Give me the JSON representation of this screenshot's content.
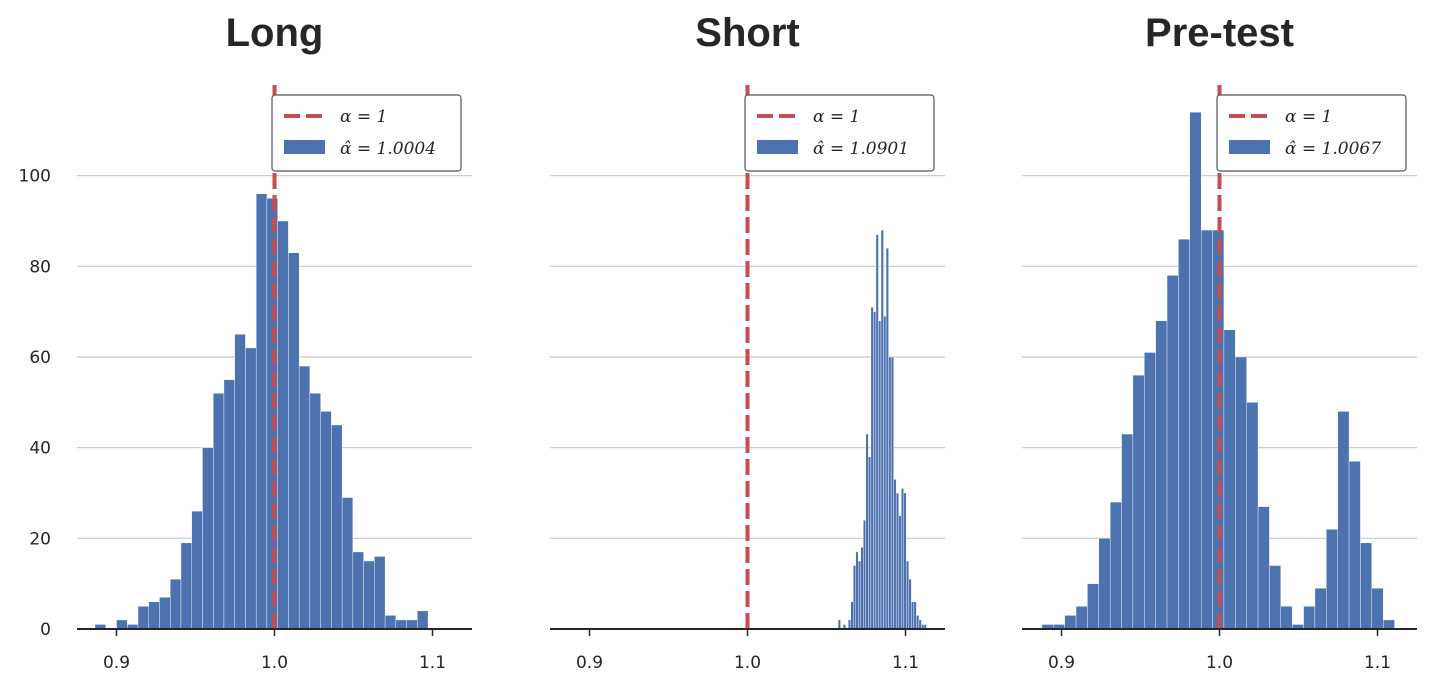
{
  "chart_data": [
    {
      "type": "histogram",
      "title": "Long",
      "xlim": [
        0.875,
        1.125
      ],
      "ylim": [
        0,
        120
      ],
      "xticks": [
        "0.9",
        "1.0",
        "1.1"
      ],
      "yticks": [
        "0",
        "20",
        "40",
        "60",
        "80",
        "100"
      ],
      "grid": "horizontal",
      "legend_position": "top-right",
      "reference_line": {
        "x": 1.0,
        "label": "α = 1",
        "color": "#c44e52",
        "style": "dashed"
      },
      "series_label": "α̂ = 1.0004",
      "bar_color": "#4c72b0",
      "bin_width": 0.0068,
      "bins": [
        {
          "x": 0.8898,
          "y": 1
        },
        {
          "x": 0.8966,
          "y": 0
        },
        {
          "x": 0.9034,
          "y": 2
        },
        {
          "x": 0.9102,
          "y": 1
        },
        {
          "x": 0.917,
          "y": 5
        },
        {
          "x": 0.9238,
          "y": 6
        },
        {
          "x": 0.9306,
          "y": 7
        },
        {
          "x": 0.9374,
          "y": 11
        },
        {
          "x": 0.9442,
          "y": 19
        },
        {
          "x": 0.951,
          "y": 26
        },
        {
          "x": 0.9578,
          "y": 40
        },
        {
          "x": 0.9646,
          "y": 52
        },
        {
          "x": 0.9714,
          "y": 55
        },
        {
          "x": 0.9782,
          "y": 65
        },
        {
          "x": 0.985,
          "y": 62
        },
        {
          "x": 0.9918,
          "y": 96
        },
        {
          "x": 0.9986,
          "y": 95
        },
        {
          "x": 1.0054,
          "y": 90
        },
        {
          "x": 1.0122,
          "y": 83
        },
        {
          "x": 1.019,
          "y": 58
        },
        {
          "x": 1.0258,
          "y": 52
        },
        {
          "x": 1.0326,
          "y": 48
        },
        {
          "x": 1.0394,
          "y": 45
        },
        {
          "x": 1.0462,
          "y": 29
        },
        {
          "x": 1.053,
          "y": 17
        },
        {
          "x": 1.0598,
          "y": 15
        },
        {
          "x": 1.0666,
          "y": 16
        },
        {
          "x": 1.0734,
          "y": 3
        },
        {
          "x": 1.0802,
          "y": 2
        },
        {
          "x": 1.087,
          "y": 2
        },
        {
          "x": 1.0938,
          "y": 4
        }
      ]
    },
    {
      "type": "histogram",
      "title": "Short",
      "xlim": [
        0.875,
        1.125
      ],
      "ylim": [
        0,
        120
      ],
      "xticks": [
        "0.9",
        "1.0",
        "1.1"
      ],
      "yticks": [],
      "grid": "horizontal",
      "legend_position": "top-right",
      "reference_line": {
        "x": 1.0,
        "label": "α = 1",
        "color": "#c44e52",
        "style": "dashed"
      },
      "series_label": "α̂ = 1.0901",
      "bar_color": "#4c72b0",
      "bin_width": 0.0016,
      "bins": [
        {
          "x": 1.0581,
          "y": 2
        },
        {
          "x": 1.0613,
          "y": 1
        },
        {
          "x": 1.0645,
          "y": 2
        },
        {
          "x": 1.0661,
          "y": 6
        },
        {
          "x": 1.0677,
          "y": 14
        },
        {
          "x": 1.0693,
          "y": 17
        },
        {
          "x": 1.0709,
          "y": 15
        },
        {
          "x": 1.0725,
          "y": 18
        },
        {
          "x": 1.0741,
          "y": 24
        },
        {
          "x": 1.0757,
          "y": 43
        },
        {
          "x": 1.0773,
          "y": 38
        },
        {
          "x": 1.0789,
          "y": 71
        },
        {
          "x": 1.0805,
          "y": 70
        },
        {
          "x": 1.0821,
          "y": 87
        },
        {
          "x": 1.0837,
          "y": 68
        },
        {
          "x": 1.0853,
          "y": 88
        },
        {
          "x": 1.0869,
          "y": 69
        },
        {
          "x": 1.0885,
          "y": 84
        },
        {
          "x": 1.0901,
          "y": 60
        },
        {
          "x": 1.0917,
          "y": 60
        },
        {
          "x": 1.0933,
          "y": 33
        },
        {
          "x": 1.0949,
          "y": 30
        },
        {
          "x": 1.0965,
          "y": 25
        },
        {
          "x": 1.0981,
          "y": 31
        },
        {
          "x": 1.0997,
          "y": 30
        },
        {
          "x": 1.1013,
          "y": 15
        },
        {
          "x": 1.1029,
          "y": 11
        },
        {
          "x": 1.1045,
          "y": 6
        },
        {
          "x": 1.1061,
          "y": 6
        },
        {
          "x": 1.1077,
          "y": 3
        },
        {
          "x": 1.1093,
          "y": 2
        },
        {
          "x": 1.1109,
          "y": 1
        },
        {
          "x": 1.1125,
          "y": 1
        }
      ]
    },
    {
      "type": "histogram",
      "title": "Pre-test",
      "xlim": [
        0.875,
        1.125
      ],
      "ylim": [
        0,
        120
      ],
      "xticks": [
        "0.9",
        "1.0",
        "1.1"
      ],
      "yticks": [],
      "grid": "horizontal",
      "legend_position": "top-right",
      "reference_line": {
        "x": 1.0,
        "label": "α = 1",
        "color": "#c44e52",
        "style": "dashed"
      },
      "series_label": "α̂ = 1.0067",
      "bar_color": "#4c72b0",
      "bin_width": 0.0072,
      "bins": [
        {
          "x": 0.8912,
          "y": 1
        },
        {
          "x": 0.8984,
          "y": 1
        },
        {
          "x": 0.9056,
          "y": 3
        },
        {
          "x": 0.9128,
          "y": 5
        },
        {
          "x": 0.92,
          "y": 10
        },
        {
          "x": 0.9272,
          "y": 20
        },
        {
          "x": 0.9344,
          "y": 28
        },
        {
          "x": 0.9416,
          "y": 43
        },
        {
          "x": 0.9488,
          "y": 56
        },
        {
          "x": 0.956,
          "y": 61
        },
        {
          "x": 0.9632,
          "y": 68
        },
        {
          "x": 0.9704,
          "y": 78
        },
        {
          "x": 0.9776,
          "y": 86
        },
        {
          "x": 0.9848,
          "y": 114
        },
        {
          "x": 0.992,
          "y": 88
        },
        {
          "x": 0.9992,
          "y": 88
        },
        {
          "x": 1.0064,
          "y": 66
        },
        {
          "x": 1.0136,
          "y": 60
        },
        {
          "x": 1.0208,
          "y": 50
        },
        {
          "x": 1.028,
          "y": 27
        },
        {
          "x": 1.0352,
          "y": 14
        },
        {
          "x": 1.0424,
          "y": 5
        },
        {
          "x": 1.0496,
          "y": 1
        },
        {
          "x": 1.0568,
          "y": 5
        },
        {
          "x": 1.064,
          "y": 9
        },
        {
          "x": 1.0712,
          "y": 22
        },
        {
          "x": 1.0784,
          "y": 48
        },
        {
          "x": 1.0856,
          "y": 37
        },
        {
          "x": 1.0928,
          "y": 19
        },
        {
          "x": 1.1,
          "y": 9
        },
        {
          "x": 1.1072,
          "y": 2
        }
      ]
    }
  ]
}
